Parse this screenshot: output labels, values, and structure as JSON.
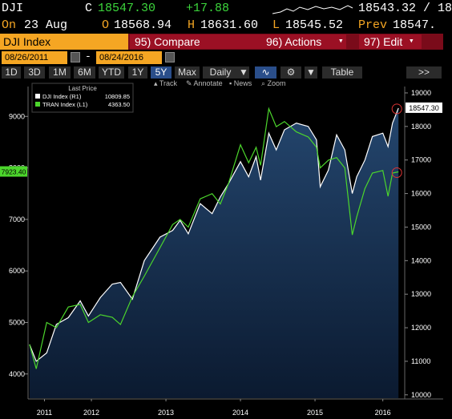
{
  "header": {
    "ticker": "DJI",
    "c_label": "C",
    "last": "18547.30",
    "change": "+17.88",
    "quote": "18543.32 / 18",
    "date_label": "On",
    "date": "23 Aug",
    "open_label": "O",
    "open": "18568.94",
    "high_label": "H",
    "high": "18631.60",
    "low_label": "L",
    "low": "18545.52",
    "prev_label": "Prev",
    "prev": "18547."
  },
  "menu": {
    "security": "DJI Index",
    "compare": "95) Compare",
    "actions": "96) Actions",
    "edit": "97) Edit"
  },
  "dates": {
    "start": "08/26/2011",
    "separator": "-",
    "end": "08/24/2016"
  },
  "toolbar": {
    "ranges": [
      "1D",
      "3D",
      "1M",
      "6M",
      "YTD",
      "1Y",
      "5Y",
      "Max"
    ],
    "period": "Daily",
    "table": "Table",
    "more": ">>"
  },
  "chart_tools": [
    "Track",
    "Annotate",
    "News",
    "Zoom"
  ],
  "chart_data": {
    "type": "line",
    "legend_title": "Last Price",
    "x": [
      2011.67,
      2011.76,
      2011.9,
      2012.03,
      2012.19,
      2012.35,
      2012.46,
      2012.62,
      2012.78,
      2012.89,
      2013.05,
      2013.21,
      2013.42,
      2013.59,
      2013.69,
      2013.8,
      2013.96,
      2014.12,
      2014.23,
      2014.34,
      2014.5,
      2014.61,
      2014.71,
      2014.77,
      2014.88,
      2014.98,
      2015.09,
      2015.25,
      2015.41,
      2015.52,
      2015.57,
      2015.68,
      2015.79,
      2015.9,
      2016.0,
      2016.06,
      2016.17,
      2016.27,
      2016.41,
      2016.48,
      2016.54,
      2016.62
    ],
    "xlim": [
      2011.65,
      2016.65
    ],
    "xticks": [
      {
        "value": 2011.87,
        "label": "2011"
      },
      {
        "value": 2012.5,
        "label": "2012"
      },
      {
        "value": 2013.5,
        "label": "2013"
      },
      {
        "value": 2014.5,
        "label": "2014"
      },
      {
        "value": 2015.5,
        "label": "2015"
      },
      {
        "value": 2016.41,
        "label": "2016"
      }
    ],
    "ylim": [
      3530,
      9580
    ],
    "yticks": [
      4000,
      5000,
      6000,
      7000,
      8000,
      9000
    ],
    "y2lim": [
      9900,
      19190
    ],
    "y2ticks": [
      10000,
      11000,
      12000,
      13000,
      14000,
      15000,
      16000,
      17000,
      18000,
      19000
    ],
    "grid": false,
    "series": [
      {
        "name": "DJI Index  (R1)",
        "legend_value": "10809.85",
        "last_label": "18547.30",
        "color": "#ffffff",
        "axis": "y2",
        "values": [
          11500,
          11000,
          11250,
          12100,
          12300,
          12800,
          12350,
          12900,
          13300,
          13350,
          12850,
          14000,
          14700,
          14900,
          15200,
          14800,
          15700,
          15400,
          15900,
          16300,
          16950,
          16500,
          17100,
          16400,
          17800,
          17300,
          17900,
          18100,
          18000,
          17600,
          16200,
          16700,
          17750,
          17300,
          16000,
          16500,
          17000,
          17700,
          17800,
          17400,
          18100,
          18547.3
        ]
      },
      {
        "name": "TRAN Index  (L1)",
        "legend_value": "4363.50",
        "last_label": "7923.40",
        "color": "#4cd62c",
        "axis": "y",
        "values": [
          4575,
          4100,
          5000,
          4900,
          5300,
          5350,
          5000,
          5150,
          5100,
          4960,
          5500,
          5900,
          6450,
          6900,
          7000,
          6850,
          7400,
          7500,
          7300,
          7700,
          8450,
          8100,
          8400,
          8050,
          9150,
          8800,
          8900,
          8700,
          8600,
          8400,
          8000,
          8150,
          8200,
          8000,
          6700,
          7050,
          7600,
          7900,
          7950,
          7450,
          7900,
          7923.4
        ]
      }
    ]
  }
}
